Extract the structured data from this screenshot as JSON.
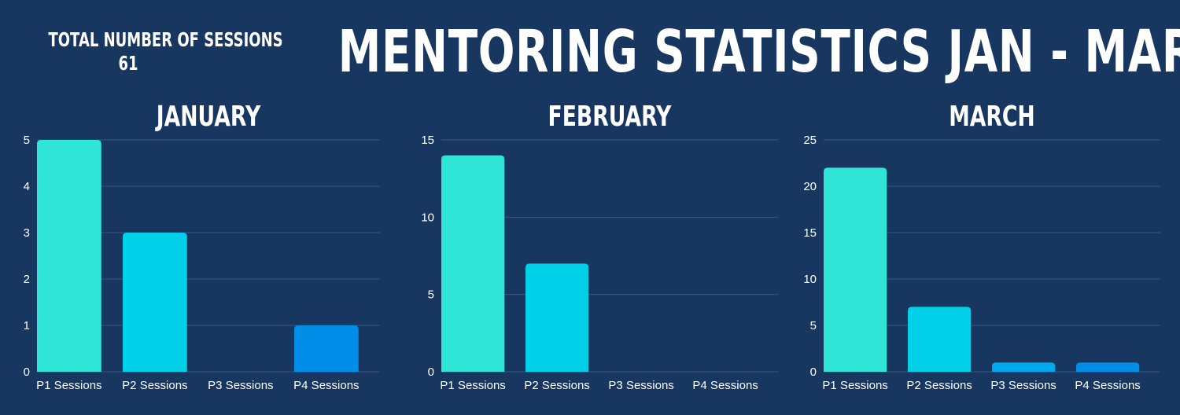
{
  "header": {
    "title": "MENTORING STATISTICS JAN - MAR",
    "total_label": "TOTAL NUMBER OF SESSIONS",
    "total_value": "61"
  },
  "colors": {
    "background": "#173761",
    "gridline": "#3a5682",
    "bar_p1": "#2ee5d6",
    "bar_p2": "#00cfe8",
    "bar_p3": "#00a8f0",
    "bar_p4": "#008ee8"
  },
  "chart_data": [
    {
      "type": "bar",
      "title": "JANUARY",
      "categories": [
        "P1 Sessions",
        "P2 Sessions",
        "P3 Sessions",
        "P4 Sessions"
      ],
      "values": [
        5,
        3,
        0,
        1
      ],
      "ylim": [
        0,
        5
      ],
      "yticks": [
        0,
        1,
        2,
        3,
        4,
        5
      ],
      "xlabel": "",
      "ylabel": "",
      "grid": true
    },
    {
      "type": "bar",
      "title": "FEBRUARY",
      "categories": [
        "P1 Sessions",
        "P2 Sessions",
        "P3 Sessions",
        "P4 Sessions"
      ],
      "values": [
        14,
        7,
        0,
        0
      ],
      "ylim": [
        0,
        15
      ],
      "yticks": [
        0,
        5,
        10,
        15
      ],
      "xlabel": "",
      "ylabel": "",
      "grid": true
    },
    {
      "type": "bar",
      "title": "MARCH",
      "categories": [
        "P1 Sessions",
        "P2 Sessions",
        "P3 Sessions",
        "P4 Sessions"
      ],
      "values": [
        22,
        7,
        1,
        1
      ],
      "ylim": [
        0,
        25
      ],
      "yticks": [
        0,
        5,
        10,
        15,
        20,
        25
      ],
      "xlabel": "",
      "ylabel": "",
      "grid": true
    }
  ]
}
